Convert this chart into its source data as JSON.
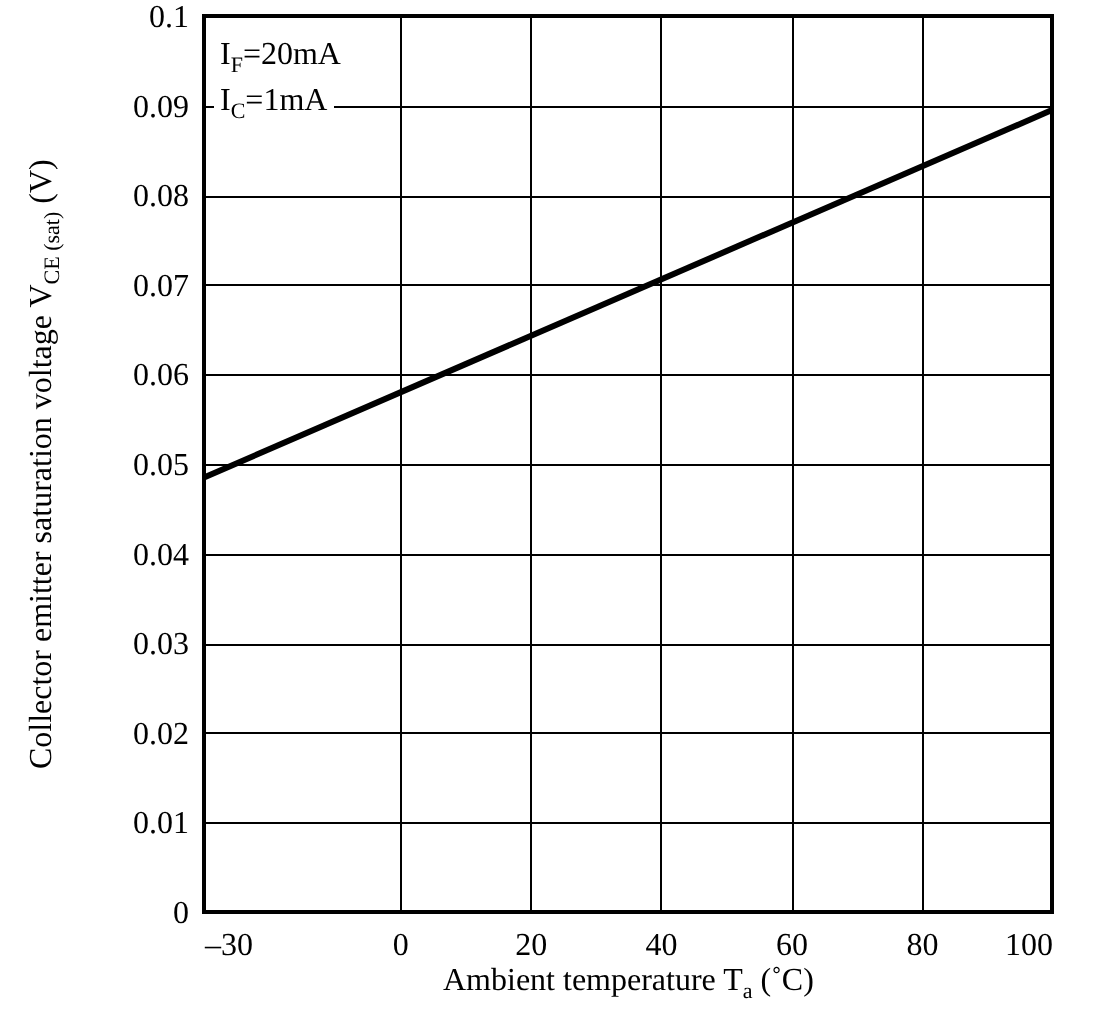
{
  "chart_data": {
    "type": "line",
    "xlabel": "Ambient temperature T$_{a}$ (˚C)",
    "ylabel": "Collector emitter saturation voltage V$_{CE (sat)}$ (V)",
    "annotations": [
      "I$_{F}$=20mA",
      "I$_{C}$=1mA"
    ],
    "x": [
      -30,
      100
    ],
    "series": [
      {
        "color": "#000000",
        "values": [
          0.0485,
          0.0895
        ]
      }
    ],
    "xlim": [
      -30,
      100
    ],
    "xticks": [
      {
        "value": -30,
        "label": "–30"
      },
      0,
      20,
      40,
      60,
      80,
      100
    ],
    "ylim": [
      0,
      0.1
    ],
    "yticks": [
      0,
      0.01,
      0.02,
      0.03,
      0.04,
      0.05,
      0.06,
      0.07,
      0.08,
      0.09,
      0.1
    ],
    "grid": true,
    "marker": "none",
    "line_style": "solid"
  }
}
